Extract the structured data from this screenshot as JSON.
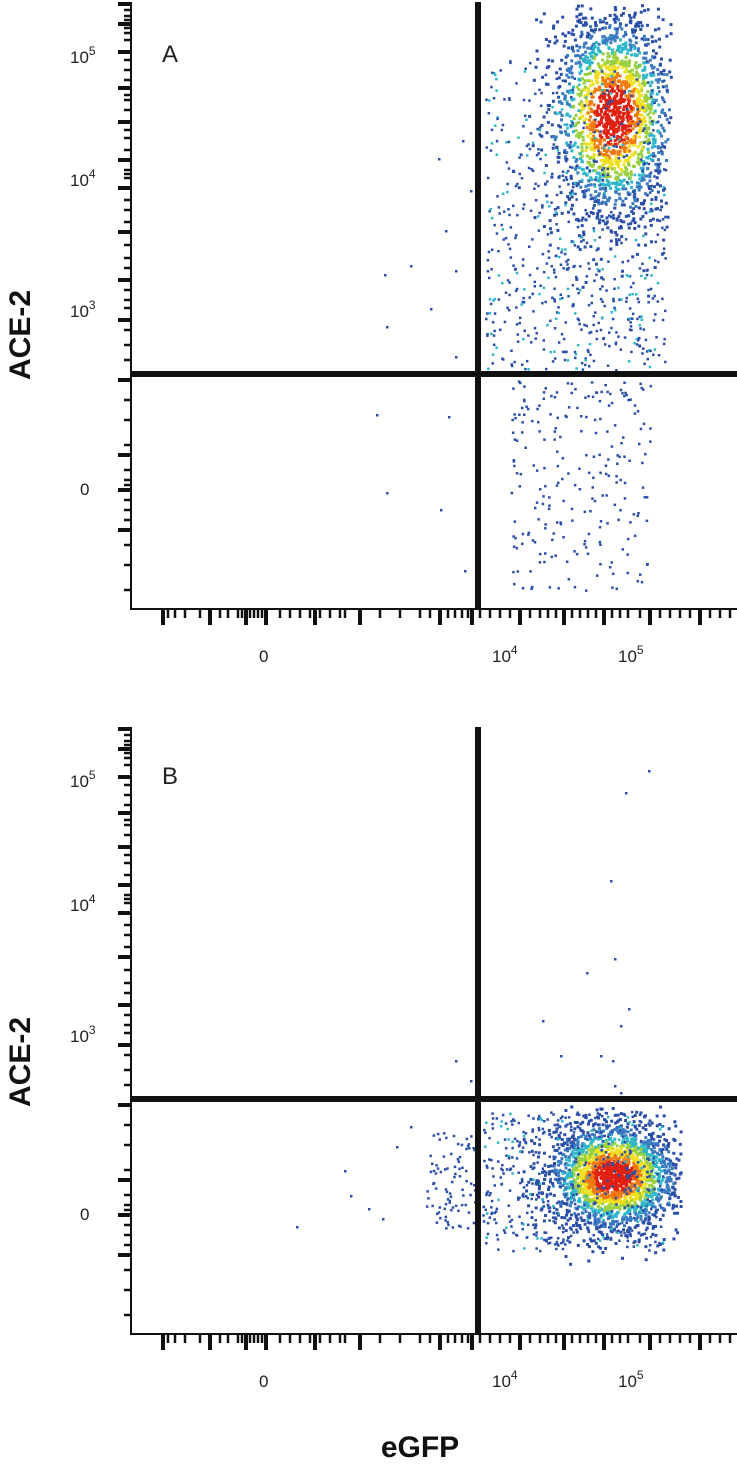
{
  "chart_data": [
    {
      "type": "scatter",
      "panel_label": "A",
      "xlabel": "",
      "ylabel": "ACE-2",
      "x_scale": "biexponential",
      "y_scale": "biexponential",
      "x_tick_labels": [
        "0",
        "10^4",
        "10^5"
      ],
      "y_tick_labels": [
        "10^5",
        "10^4",
        "10^3",
        "0"
      ],
      "x_gate": 8000,
      "y_gate": 300,
      "population": {
        "x_center": 80000,
        "y_center": 30000,
        "density": "high"
      }
    },
    {
      "type": "scatter",
      "panel_label": "B",
      "xlabel": "eGFP",
      "ylabel": "ACE-2",
      "x_scale": "biexponential",
      "y_scale": "biexponential",
      "x_tick_labels": [
        "0",
        "10^4",
        "10^5"
      ],
      "y_tick_labels": [
        "10^5",
        "10^4",
        "10^3",
        "0"
      ],
      "x_gate": 8000,
      "y_gate": 300,
      "population": {
        "x_center": 80000,
        "y_center": 0,
        "density": "high"
      }
    }
  ],
  "colors": {
    "density_low": "#2b4fa8",
    "density_mid": "#2fb8c9",
    "density_high": "#f0e020",
    "density_peak": "#e02010",
    "gate_line": "#111111"
  }
}
